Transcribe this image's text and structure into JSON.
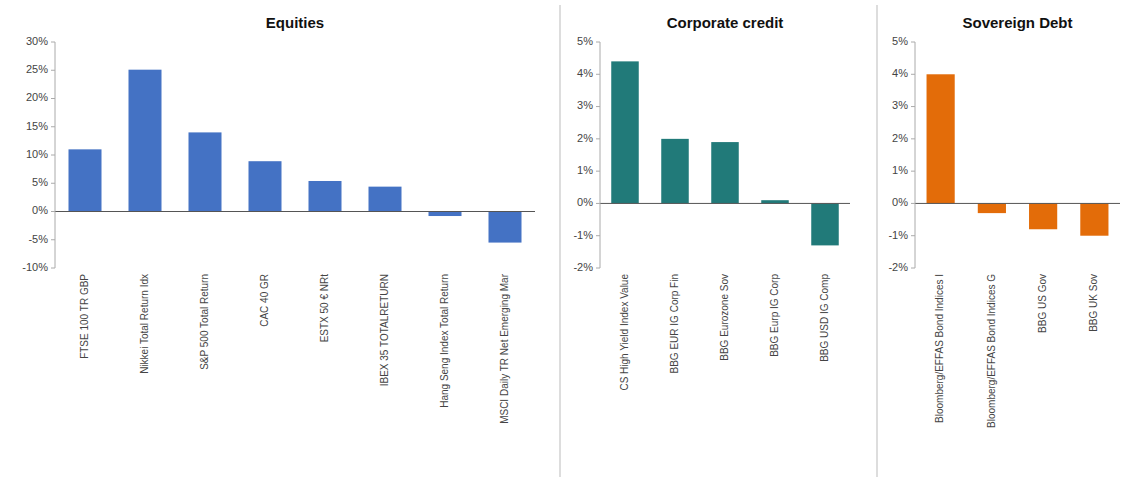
{
  "chart_data": [
    {
      "type": "bar",
      "title": "Equities",
      "categories": [
        "FTSE 100 TR GBP",
        "Nikkei Total Return Idx",
        "S&P 500 Total Return",
        "CAC 40 GR",
        "ESTX 50 € NRt",
        "IBEX 35 TOTALRETURN",
        "Hang Seng Index Total Return",
        "MSCI Daily TR Net Emerging Mar"
      ],
      "values": [
        0.11,
        0.251,
        0.14,
        0.089,
        0.054,
        0.044,
        -0.008,
        -0.055
      ],
      "color": "#4472C4",
      "ylim": [
        -0.1,
        0.3
      ],
      "yticks": [
        {
          "value": -0.1,
          "label": "-10%"
        },
        {
          "value": -0.05,
          "label": "-5%"
        },
        {
          "value": 0.0,
          "label": "0%"
        },
        {
          "value": 0.05,
          "label": "5%"
        },
        {
          "value": 0.1,
          "label": "10%"
        },
        {
          "value": 0.15,
          "label": "15%"
        },
        {
          "value": 0.2,
          "label": "20%"
        },
        {
          "value": 0.25,
          "label": "25%"
        },
        {
          "value": 0.3,
          "label": "30%"
        }
      ],
      "grid": false
    },
    {
      "type": "bar",
      "title": "Corporate credit",
      "categories": [
        "CS High Yield Index Value",
        "BBG EUR IG Corp Fin",
        "BBG Eurozone Sov",
        "BBG Eurp IG Corp",
        "BBG USD IG Comp"
      ],
      "values": [
        0.044,
        0.02,
        0.019,
        0.001,
        -0.013
      ],
      "color": "#217A79",
      "ylim": [
        -0.02,
        0.05
      ],
      "yticks": [
        {
          "value": -0.02,
          "label": "-2%"
        },
        {
          "value": -0.01,
          "label": "-1%"
        },
        {
          "value": 0.0,
          "label": "0%"
        },
        {
          "value": 0.01,
          "label": "1%"
        },
        {
          "value": 0.02,
          "label": "2%"
        },
        {
          "value": 0.03,
          "label": "3%"
        },
        {
          "value": 0.04,
          "label": "4%"
        },
        {
          "value": 0.05,
          "label": "5%"
        }
      ],
      "grid": false
    },
    {
      "type": "bar",
      "title": "Sovereign Debt",
      "categories": [
        "Bloomberg/EFFAS Bond Indices I",
        "Bloomberg/EFFAS Bond Indices G",
        "BBG US Gov",
        "BBG UK Sov"
      ],
      "values": [
        0.04,
        -0.003,
        -0.008,
        -0.01
      ],
      "color": "#E36C09",
      "ylim": [
        -0.02,
        0.05
      ],
      "yticks": [
        {
          "value": -0.02,
          "label": "-2%"
        },
        {
          "value": -0.01,
          "label": "-1%"
        },
        {
          "value": 0.0,
          "label": "0%"
        },
        {
          "value": 0.01,
          "label": "1%"
        },
        {
          "value": 0.02,
          "label": "2%"
        },
        {
          "value": 0.03,
          "label": "3%"
        },
        {
          "value": 0.04,
          "label": "4%"
        },
        {
          "value": 0.05,
          "label": "5%"
        }
      ],
      "grid": false
    }
  ]
}
